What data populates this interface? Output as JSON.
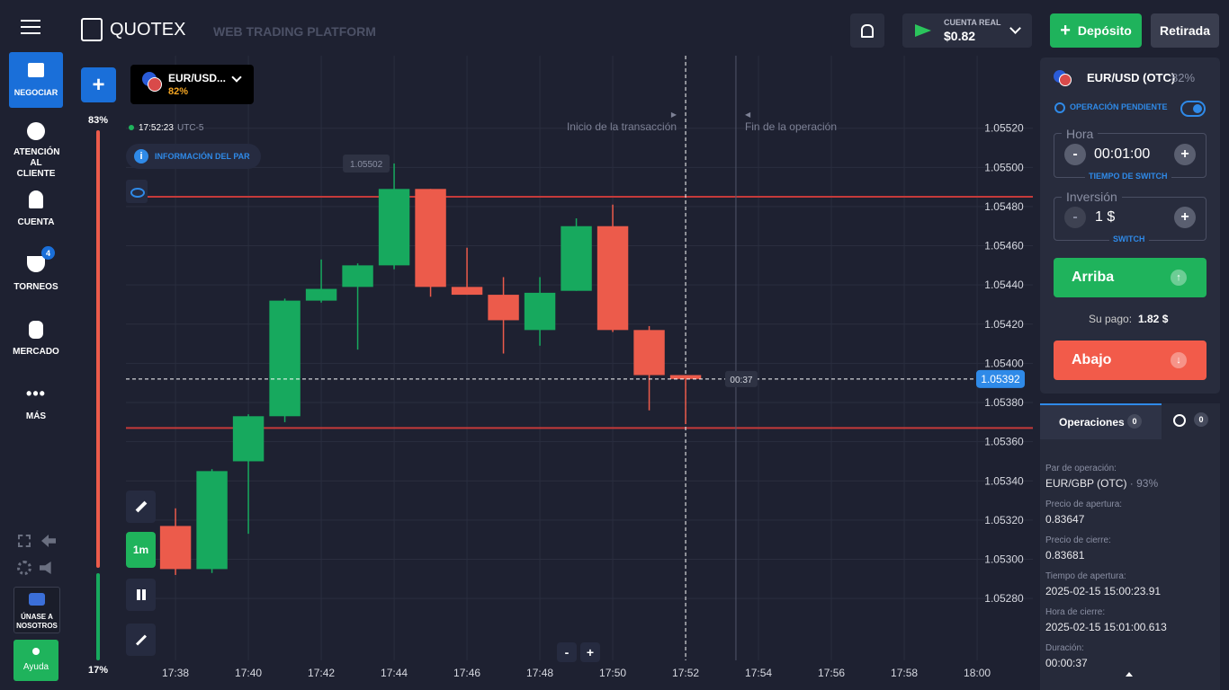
{
  "header": {
    "brand": "QUOTEX",
    "subtitle": "WEB TRADING PLATFORM",
    "account_type": "CUENTA REAL",
    "balance": "$0.82",
    "deposit": "Depósito",
    "withdraw": "Retirada"
  },
  "sidebar": {
    "items": [
      "NEGOCIAR",
      "ATENCIÓN AL CLIENTE",
      "CUENTA",
      "TORNEOS",
      "MERCADO",
      "MÁS"
    ],
    "tournament_badge": "4",
    "join": "ÚNASE A NOSOTROS",
    "help": "Ayuda"
  },
  "toolbar": {
    "asset": "EUR/USD...",
    "asset_payout": "82%",
    "clock": "17:52:23",
    "timezone": "UTC-5",
    "info": "INFORMACIÓN DEL PAR",
    "timeframe": "1m",
    "zoom_out": "-",
    "zoom_in": "+"
  },
  "sentiment": {
    "values": [
      83,
      17
    ],
    "labels": [
      "83%",
      "17%"
    ],
    "colors": [
      "#ec5b4b",
      "#17a95e"
    ]
  },
  "chart": {
    "type": "candlestick",
    "candles": [
      {
        "x": 38,
        "open": 1.05317,
        "high": 1.05326,
        "low": 1.05292,
        "close": 1.05295
      },
      {
        "x": 39,
        "open": 1.05295,
        "high": 1.05346,
        "low": 1.05293,
        "close": 1.05345
      },
      {
        "x": 40,
        "open": 1.0535,
        "high": 1.05374,
        "low": 1.05313,
        "close": 1.05373
      },
      {
        "x": 41,
        "open": 1.05373,
        "high": 1.05433,
        "low": 1.0537,
        "close": 1.05432
      },
      {
        "x": 42,
        "open": 1.05432,
        "high": 1.05453,
        "low": 1.05431,
        "close": 1.05438
      },
      {
        "x": 43,
        "open": 1.05439,
        "high": 1.05451,
        "low": 1.05407,
        "close": 1.0545
      },
      {
        "x": 44,
        "open": 1.0545,
        "high": 1.05502,
        "low": 1.05448,
        "close": 1.05489
      },
      {
        "x": 45,
        "open": 1.05489,
        "high": 1.05489,
        "low": 1.05434,
        "close": 1.05439
      },
      {
        "x": 46,
        "open": 1.05439,
        "high": 1.05459,
        "low": 1.05435,
        "close": 1.05435
      },
      {
        "x": 47,
        "open": 1.05435,
        "high": 1.05444,
        "low": 1.05405,
        "close": 1.05422
      },
      {
        "x": 48,
        "open": 1.05417,
        "high": 1.05444,
        "low": 1.05409,
        "close": 1.05436
      },
      {
        "x": 49,
        "open": 1.05437,
        "high": 1.05474,
        "low": 1.05437,
        "close": 1.0547
      },
      {
        "x": 50,
        "open": 1.0547,
        "high": 1.05481,
        "low": 1.05416,
        "close": 1.05417
      },
      {
        "x": 51,
        "open": 1.05417,
        "high": 1.05419,
        "low": 1.05376,
        "close": 1.05394
      },
      {
        "x": 52,
        "open": 1.05394,
        "high": 1.05394,
        "low": 1.05369,
        "close": 1.05392
      }
    ],
    "xlim": [
      36.64,
      61.53
    ],
    "xticks": [
      {
        "value": 38,
        "label": "17:38"
      },
      {
        "value": 40,
        "label": "17:40"
      },
      {
        "value": 42,
        "label": "17:42"
      },
      {
        "value": 44,
        "label": "17:44"
      },
      {
        "value": 46,
        "label": "17:46"
      },
      {
        "value": 48,
        "label": "17:48"
      },
      {
        "value": 50,
        "label": "17:50"
      },
      {
        "value": 52,
        "label": "17:52"
      },
      {
        "value": 54,
        "label": "17:54"
      },
      {
        "value": 56,
        "label": "17:56"
      },
      {
        "value": 58,
        "label": "17:58"
      },
      {
        "value": 60,
        "label": "18:00"
      }
    ],
    "ylim": [
      1.05253,
      1.05557
    ],
    "yticks": [
      {
        "value": 1.0552,
        "label": "1.05520"
      },
      {
        "value": 1.055,
        "label": "1.05500"
      },
      {
        "value": 1.0548,
        "label": "1.05480"
      },
      {
        "value": 1.0546,
        "label": "1.05460"
      },
      {
        "value": 1.0544,
        "label": "1.05440"
      },
      {
        "value": 1.0542,
        "label": "1.05420"
      },
      {
        "value": 1.054,
        "label": "1.05400"
      },
      {
        "value": 1.0538,
        "label": "1.05380"
      },
      {
        "value": 1.0536,
        "label": "1.05360"
      },
      {
        "value": 1.0534,
        "label": "1.05340"
      },
      {
        "value": 1.0532,
        "label": "1.05320"
      },
      {
        "value": 1.053,
        "label": "1.05300"
      },
      {
        "value": 1.0528,
        "label": "1.05280"
      }
    ],
    "grid": true,
    "up_color": "#17a95e",
    "down_color": "#ec5b4b",
    "current_price": 1.05392,
    "timer": "00:37",
    "high_label": 1.05502,
    "levels": [
      1.05485,
      1.05367
    ],
    "markers": [
      {
        "label": "Inicio de la transacción",
        "x": 52
      },
      {
        "label": "Fin de la operación",
        "x": 53.38
      }
    ]
  },
  "trade_panel": {
    "asset": "EUR/USD (OTC)",
    "payout": "82%",
    "pending": "OPERACIÓN PENDIENTE",
    "time_label": "Hora",
    "time": "00:01:00",
    "time_hint": "TIEMPO DE SWITCH",
    "amount_label": "Inversión",
    "amount": "1 $",
    "amount_hint": "SWITCH",
    "minus": "-",
    "plus": "+",
    "up": "Arriba",
    "payout_label": "Su pago:",
    "payout_value": "1.82 $",
    "down": "Abajo"
  },
  "trades": {
    "tab": "Operaciones",
    "open_count": "0",
    "closed_count": "0",
    "details": [
      {
        "label": "Par de operación:",
        "value": "EUR/GBP (OTC)",
        "extra": "93%"
      },
      {
        "label": "Precio de apertura:",
        "value": "0.83647"
      },
      {
        "label": "Precio de cierre:",
        "value": "0.83681"
      },
      {
        "label": "Tiempo de apertura:",
        "value": "2025-02-15 15:00:23.91"
      },
      {
        "label": "Hora de cierre:",
        "value": "2025-02-15 15:01:00.613"
      },
      {
        "label": "Duración:",
        "value": "00:00:37"
      }
    ]
  }
}
